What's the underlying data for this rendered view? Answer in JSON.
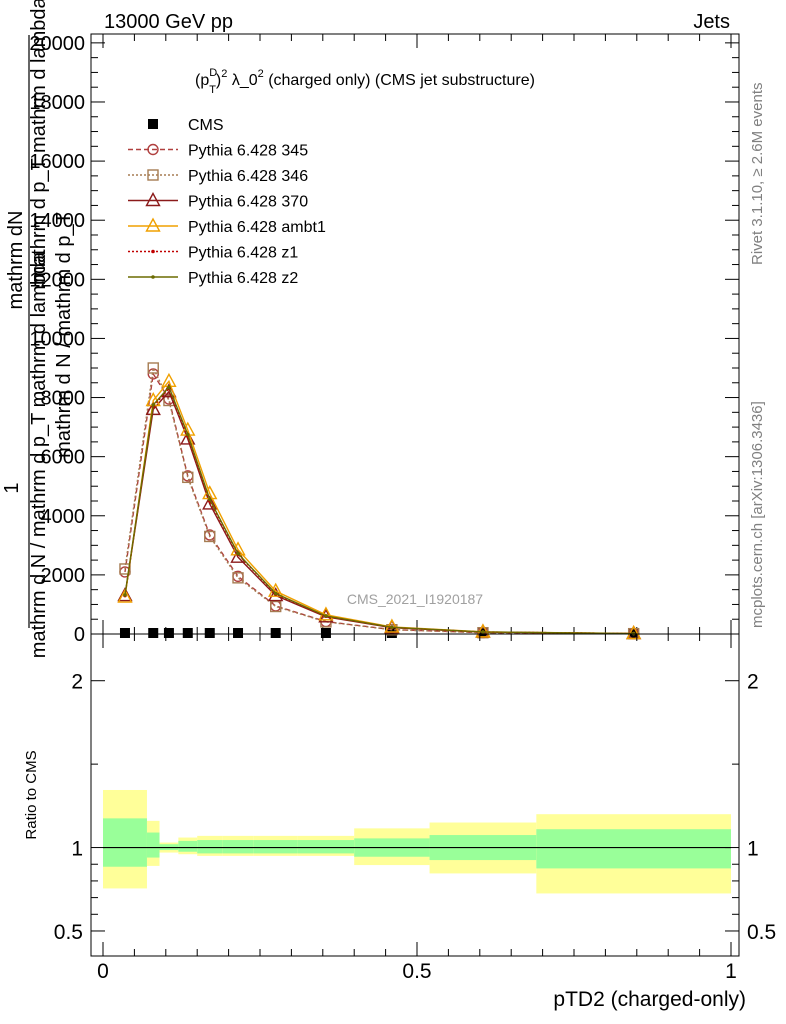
{
  "header": {
    "left": "13000 GeV pp",
    "right": "Jets"
  },
  "side": {
    "top": "Rivet 3.1.10, ≥ 2.6M events",
    "bottom": "mcplots.cern.ch [arXiv:1306.3436]"
  },
  "watermark": "CMS_2021_I1920187",
  "chart_data": [
    {
      "type": "line",
      "title": "(p_T^D)^2 λ_0^2 (charged only) (CMS jet substructure)",
      "title_parts": {
        "a": "(p",
        "sup_d": "D",
        "sub_t": "T",
        "b": ")",
        "sup2": "2",
        "c": " λ_0",
        "sup2b": "2",
        "d": " (charged only) (CMS jet substructure)"
      },
      "ylabel": {
        "one": "1",
        "num": "mathrm d N / mathrm d p_T mathrm d lambda",
        "den": "mathrm d N / mathrm d p_T",
        "inner_num": "mathrm dN",
        "inner_den": "mathrm d p_T mathrm d lambda"
      },
      "xlim": [
        0,
        1
      ],
      "ylim": [
        0,
        20300
      ],
      "yticks": [
        {
          "v": 0,
          "label": "0"
        },
        {
          "v": 2000,
          "label": "2000"
        },
        {
          "v": 4000,
          "label": "4000"
        },
        {
          "v": 6000,
          "label": "6000"
        },
        {
          "v": 8000,
          "label": "8000"
        },
        {
          "v": 10000,
          "label": "10000"
        },
        {
          "v": 12000,
          "label": "12000"
        },
        {
          "v": 14000,
          "label": "14000"
        },
        {
          "v": 16000,
          "label": "16000"
        },
        {
          "v": 18000,
          "label": "18000"
        },
        {
          "v": 20000,
          "label": "20000"
        }
      ],
      "legend_position": "top-left",
      "x": [
        0.035,
        0.08,
        0.105,
        0.135,
        0.17,
        0.215,
        0.275,
        0.355,
        0.46,
        0.605,
        0.845
      ],
      "series": [
        {
          "name": "CMS",
          "color": "#000000",
          "marker": "square-filled",
          "line": "none",
          "values": [
            0,
            0,
            0,
            0,
            0,
            0,
            0,
            0,
            0,
            0,
            0
          ]
        },
        {
          "name": "Pythia 6.428 345",
          "color": "#b0403f",
          "marker": "circle",
          "line": "dashed",
          "values": [
            2100,
            8800,
            7950,
            5350,
            3350,
            1950,
            950,
            420,
            150,
            45,
            12
          ]
        },
        {
          "name": "Pythia 6.428 346",
          "color": "#a67c52",
          "marker": "square",
          "line": "dotted",
          "values": [
            2200,
            9000,
            7900,
            5300,
            3300,
            1900,
            930,
            410,
            145,
            44,
            12
          ]
        },
        {
          "name": "Pythia 6.428 370",
          "color": "#8b1a1a",
          "marker": "triangle",
          "line": "solid",
          "values": [
            1300,
            7600,
            8200,
            6600,
            4400,
            2600,
            1300,
            580,
            215,
            65,
            15
          ]
        },
        {
          "name": "Pythia 6.428 ambt1",
          "color": "#f0a000",
          "marker": "triangle",
          "line": "solid",
          "values": [
            1250,
            7900,
            8550,
            6900,
            4750,
            2850,
            1450,
            650,
            240,
            72,
            17
          ]
        },
        {
          "name": "Pythia 6.428 z1",
          "color": "#c00000",
          "marker": "dot",
          "line": "dotted",
          "values": [
            1300,
            7700,
            8300,
            6700,
            4500,
            2700,
            1350,
            600,
            220,
            68,
            16
          ]
        },
        {
          "name": "Pythia 6.428 z2",
          "color": "#6b6b00",
          "marker": "dot",
          "line": "solid",
          "values": [
            1320,
            7750,
            8350,
            6750,
            4550,
            2720,
            1370,
            610,
            225,
            69,
            16
          ]
        }
      ]
    },
    {
      "type": "area",
      "xlabel": "pTD2 (charged-only)",
      "ylabel": "Ratio to CMS",
      "xlim": [
        0,
        1
      ],
      "ylim": [
        0.35,
        2.28
      ],
      "xticks": [
        {
          "v": 0,
          "label": "0"
        },
        {
          "v": 0.5,
          "label": "0.5"
        },
        {
          "v": 1,
          "label": "1"
        }
      ],
      "yticks": [
        {
          "v": 0.5,
          "label": "0.5"
        },
        {
          "v": 1,
          "label": "1"
        },
        {
          "v": 2,
          "label": "2"
        }
      ],
      "reference": 1,
      "bands": [
        {
          "x0": 0.0,
          "x1": 0.07,
          "inner": [
            0.885,
            1.175
          ],
          "outer": [
            0.755,
            1.345
          ]
        },
        {
          "x0": 0.07,
          "x1": 0.09,
          "inner": [
            0.94,
            1.09
          ],
          "outer": [
            0.89,
            1.16
          ]
        },
        {
          "x0": 0.09,
          "x1": 0.12,
          "inner": [
            0.985,
            1.02
          ],
          "outer": [
            0.97,
            1.03
          ]
        },
        {
          "x0": 0.12,
          "x1": 0.15,
          "inner": [
            0.975,
            1.04
          ],
          "outer": [
            0.96,
            1.06
          ]
        },
        {
          "x0": 0.15,
          "x1": 0.19,
          "inner": [
            0.965,
            1.045
          ],
          "outer": [
            0.95,
            1.07
          ]
        },
        {
          "x0": 0.19,
          "x1": 0.24,
          "inner": [
            0.965,
            1.045
          ],
          "outer": [
            0.95,
            1.07
          ]
        },
        {
          "x0": 0.24,
          "x1": 0.31,
          "inner": [
            0.965,
            1.045
          ],
          "outer": [
            0.95,
            1.07
          ]
        },
        {
          "x0": 0.31,
          "x1": 0.4,
          "inner": [
            0.965,
            1.045
          ],
          "outer": [
            0.95,
            1.07
          ]
        },
        {
          "x0": 0.4,
          "x1": 0.52,
          "inner": [
            0.945,
            1.055
          ],
          "outer": [
            0.895,
            1.115
          ]
        },
        {
          "x0": 0.52,
          "x1": 0.69,
          "inner": [
            0.925,
            1.075
          ],
          "outer": [
            0.845,
            1.15
          ]
        },
        {
          "x0": 0.69,
          "x1": 1.0,
          "inner": [
            0.875,
            1.11
          ],
          "outer": [
            0.725,
            1.2
          ]
        }
      ],
      "colors": {
        "inner": "#99ff99",
        "outer": "#ffff99"
      }
    }
  ]
}
